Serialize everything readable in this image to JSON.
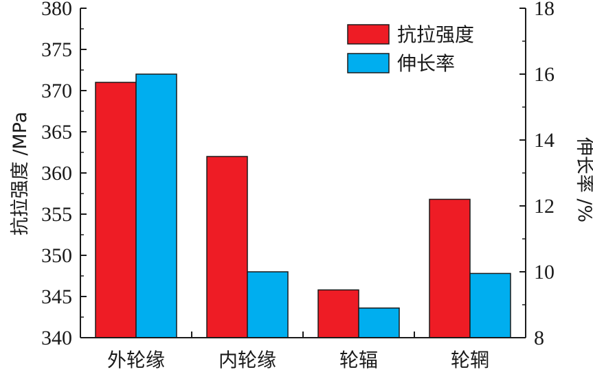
{
  "chart_data": {
    "type": "bar",
    "categories": [
      "外轮缘",
      "内轮缘",
      "轮辐",
      "轮辋"
    ],
    "series": [
      {
        "name": "抗拉强度",
        "axis": "left",
        "color": "#ee1c25",
        "values": [
          371,
          362,
          345.8,
          356.8
        ]
      },
      {
        "name": "伸长率",
        "axis": "right",
        "color": "#00aeef",
        "values": [
          16.0,
          10.0,
          8.9,
          9.95
        ]
      }
    ],
    "ylabel": "抗拉强度 /MPa",
    "ylabel_right": "伸长率 /%",
    "ylim": [
      340,
      380
    ],
    "ylim_right": [
      8,
      18
    ],
    "yticks": [
      "340",
      "345",
      "350",
      "355",
      "360",
      "365",
      "370",
      "375",
      "380"
    ],
    "yticks_right": [
      "8",
      "10",
      "12",
      "14",
      "16",
      "18"
    ],
    "legend_position": "top-right",
    "grid": false
  }
}
